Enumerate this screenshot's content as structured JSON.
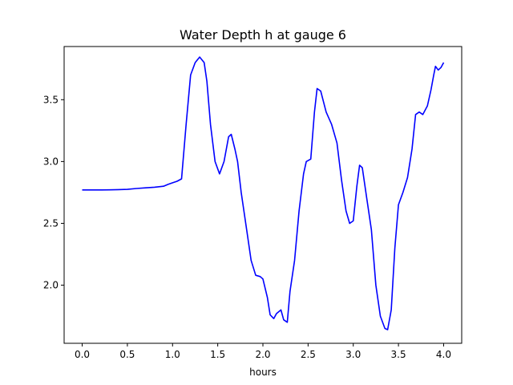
{
  "chart_data": {
    "type": "line",
    "title": "Water Depth h at gauge 6",
    "xlabel": "hours",
    "ylabel": "",
    "xlim": [
      -0.2,
      4.2
    ],
    "ylim": [
      1.53,
      3.93
    ],
    "xticks": [
      0.0,
      0.5,
      1.0,
      1.5,
      2.0,
      2.5,
      3.0,
      3.5,
      4.0
    ],
    "xtick_labels": [
      "0.0",
      "0.5",
      "1.0",
      "1.5",
      "2.0",
      "2.5",
      "3.0",
      "3.5",
      "4.0"
    ],
    "yticks": [
      2.0,
      2.5,
      3.0,
      3.5
    ],
    "ytick_labels": [
      "2.0",
      "2.5",
      "3.0",
      "3.5"
    ],
    "grid": false,
    "legend": "none",
    "colors": {
      "line": "#0000ff",
      "axes": "#000000",
      "background": "#ffffff"
    },
    "series": [
      {
        "x": [
          0.0,
          0.1,
          0.2,
          0.3,
          0.4,
          0.5,
          0.6,
          0.7,
          0.8,
          0.9,
          0.95,
          1.0,
          1.05,
          1.1,
          1.15,
          1.2,
          1.25,
          1.3,
          1.35,
          1.38,
          1.42,
          1.47,
          1.52,
          1.57,
          1.62,
          1.65,
          1.69,
          1.72,
          1.76,
          1.82,
          1.87,
          1.92,
          1.97,
          2.0,
          2.05,
          2.08,
          2.12,
          2.15,
          2.2,
          2.23,
          2.27,
          2.3,
          2.35,
          2.4,
          2.45,
          2.48,
          2.53,
          2.57,
          2.6,
          2.64,
          2.7,
          2.76,
          2.82,
          2.87,
          2.92,
          2.96,
          3.0,
          3.04,
          3.07,
          3.1,
          3.15,
          3.2,
          3.25,
          3.3,
          3.35,
          3.38,
          3.42,
          3.46,
          3.5,
          3.55,
          3.6,
          3.65,
          3.69,
          3.73,
          3.77,
          3.82,
          3.86,
          3.89,
          3.91,
          3.94,
          3.97,
          4.0
        ],
        "y": [
          2.77,
          2.77,
          2.77,
          2.771,
          2.773,
          2.775,
          2.782,
          2.787,
          2.792,
          2.8,
          2.815,
          2.828,
          2.84,
          2.86,
          3.3,
          3.7,
          3.8,
          3.845,
          3.8,
          3.65,
          3.3,
          3.0,
          2.9,
          3.0,
          3.2,
          3.22,
          3.1,
          3.0,
          2.75,
          2.45,
          2.2,
          2.08,
          2.07,
          2.05,
          1.9,
          1.76,
          1.73,
          1.77,
          1.8,
          1.72,
          1.7,
          1.95,
          2.2,
          2.6,
          2.9,
          3.0,
          3.02,
          3.4,
          3.59,
          3.57,
          3.4,
          3.3,
          3.15,
          2.85,
          2.6,
          2.5,
          2.52,
          2.8,
          2.97,
          2.95,
          2.7,
          2.45,
          2.0,
          1.75,
          1.65,
          1.64,
          1.8,
          2.3,
          2.65,
          2.75,
          2.87,
          3.1,
          3.38,
          3.4,
          3.38,
          3.45,
          3.58,
          3.7,
          3.77,
          3.74,
          3.76,
          3.8
        ]
      }
    ]
  }
}
